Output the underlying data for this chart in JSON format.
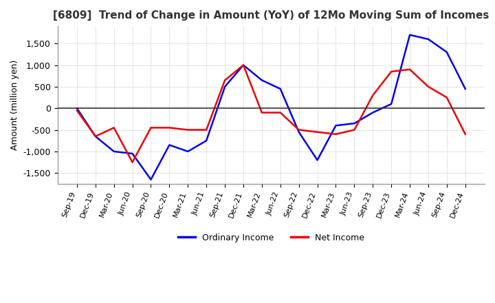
{
  "title": "[6809]  Trend of Change in Amount (YoY) of 12Mo Moving Sum of Incomes",
  "ylabel": "Amount (million yen)",
  "background_color": "#ffffff",
  "plot_bg_color": "#ffffff",
  "grid_color": "#aaaaaa",
  "x_labels": [
    "Sep-19",
    "Dec-19",
    "Mar-20",
    "Jun-20",
    "Sep-20",
    "Dec-20",
    "Mar-21",
    "Jun-21",
    "Sep-21",
    "Dec-21",
    "Mar-22",
    "Jun-22",
    "Sep-22",
    "Dec-22",
    "Mar-23",
    "Jun-23",
    "Sep-23",
    "Dec-23",
    "Mar-24",
    "Jun-24",
    "Sep-24",
    "Dec-24"
  ],
  "ordinary_income": [
    0,
    -650,
    -1000,
    -1050,
    -1650,
    -850,
    -1000,
    -750,
    500,
    1000,
    650,
    450,
    -550,
    -1200,
    -400,
    -350,
    -100,
    100,
    1700,
    1600,
    1300,
    450
  ],
  "net_income": [
    -50,
    -650,
    -450,
    -1250,
    -450,
    -450,
    -500,
    -500,
    650,
    1000,
    -100,
    -100,
    -500,
    -550,
    -600,
    -500,
    300,
    850,
    900,
    500,
    250,
    -600
  ],
  "ylim": [
    -1750,
    1900
  ],
  "yticks": [
    -1500,
    -1000,
    -500,
    0,
    500,
    1000,
    1500
  ],
  "ordinary_color": "#0000ee",
  "net_color": "#ee0000",
  "line_width": 1.8
}
